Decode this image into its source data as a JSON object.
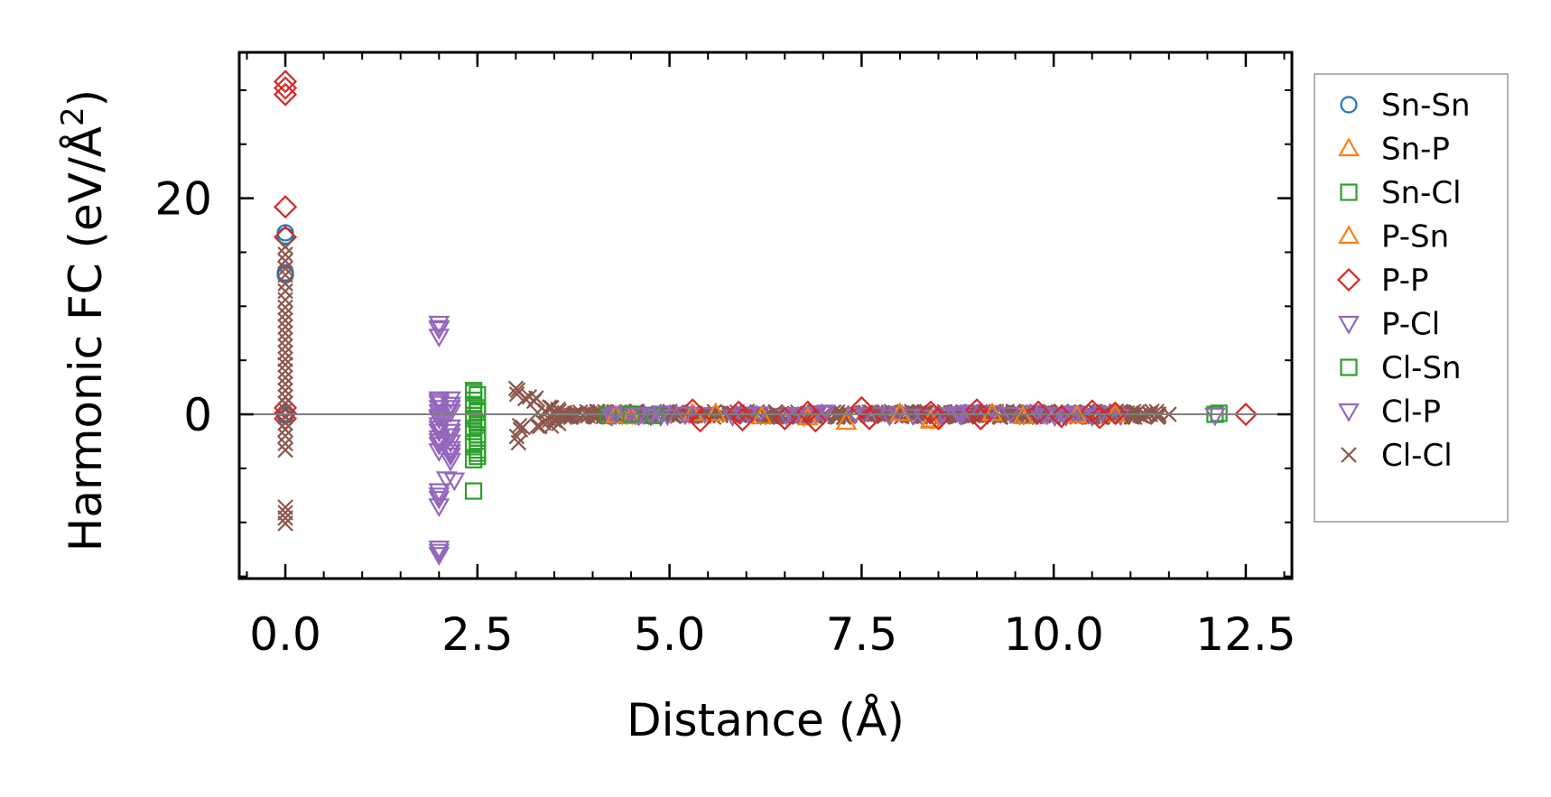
{
  "chart_data": {
    "type": "scatter",
    "xlabel": "Distance (Å)",
    "ylabel_prefix": "Harmonic FC (eV/Å",
    "ylabel_sup": "2",
    "ylabel_suffix": ")",
    "xlim": [
      -0.6,
      13.1
    ],
    "ylim": [
      -15.2,
      33.5
    ],
    "xticks": [
      0.0,
      2.5,
      5.0,
      7.5,
      10.0,
      12.5
    ],
    "xtick_labels": [
      "0.0",
      "2.5",
      "5.0",
      "7.5",
      "10.0",
      "12.5"
    ],
    "xminor_step": 0.5,
    "yticks": [
      0,
      20
    ],
    "ytick_labels": [
      "0",
      "20"
    ],
    "yminor_step": 5,
    "zero_line": true,
    "legend_position": "outside-right",
    "series": [
      {
        "name": "Sn-Sn",
        "marker": "circle",
        "color": "#1f77b4",
        "points": [
          [
            0,
            12.9
          ],
          [
            0,
            13.1
          ],
          [
            0,
            16.8
          ],
          [
            0,
            16.5
          ],
          [
            0,
            0.1
          ],
          [
            0,
            -0.1
          ]
        ]
      },
      {
        "name": "Sn-P",
        "marker": "triangle-up",
        "color": "#ff7f0e",
        "points": [
          [
            4.5,
            -0.2
          ],
          [
            5.3,
            0.1
          ],
          [
            6.2,
            -0.2
          ],
          [
            7.3,
            -0.7
          ],
          [
            8.4,
            -0.5
          ],
          [
            9.2,
            0.1
          ],
          [
            10.3,
            -0.1
          ]
        ]
      },
      {
        "name": "Sn-Cl",
        "marker": "square",
        "color": "#2ca02c",
        "points": [
          [
            2.45,
            2.2
          ],
          [
            2.5,
            1.8
          ],
          [
            2.45,
            0.9
          ],
          [
            2.5,
            0.2
          ],
          [
            2.45,
            -0.4
          ],
          [
            2.5,
            -1.0
          ],
          [
            2.45,
            -1.6
          ],
          [
            2.5,
            -2.2
          ],
          [
            2.45,
            -3.0
          ],
          [
            2.5,
            -3.6
          ],
          [
            2.45,
            -4.2
          ],
          [
            2.45,
            -7.1
          ],
          [
            4.2,
            -0.1
          ],
          [
            4.8,
            -0.1
          ],
          [
            12.1,
            0.0
          ]
        ]
      },
      {
        "name": "P-Sn",
        "marker": "triangle-up",
        "color": "#ff7f0e",
        "points": [
          [
            4.3,
            -0.1
          ],
          [
            5.6,
            0.1
          ],
          [
            6.8,
            -0.3
          ],
          [
            8.0,
            0.1
          ],
          [
            8.4,
            -0.6
          ],
          [
            9.6,
            -0.2
          ],
          [
            10.8,
            0.0
          ]
        ]
      },
      {
        "name": "P-P",
        "marker": "diamond",
        "color": "#d62728",
        "points": [
          [
            0,
            30.8
          ],
          [
            0,
            30.2
          ],
          [
            0,
            29.6
          ],
          [
            0,
            19.2
          ],
          [
            0,
            16.4
          ],
          [
            0,
            0.6
          ],
          [
            0,
            0.1
          ],
          [
            0,
            -0.4
          ],
          [
            5.3,
            0.4
          ],
          [
            5.4,
            -0.6
          ],
          [
            5.9,
            0.2
          ],
          [
            5.95,
            -0.5
          ],
          [
            6.5,
            -0.4
          ],
          [
            6.8,
            0.2
          ],
          [
            6.9,
            -0.6
          ],
          [
            7.5,
            0.6
          ],
          [
            7.6,
            -0.4
          ],
          [
            8.4,
            0.2
          ],
          [
            8.5,
            -0.4
          ],
          [
            9.0,
            0.4
          ],
          [
            9.05,
            -0.4
          ],
          [
            9.8,
            0.2
          ],
          [
            10.1,
            -0.2
          ],
          [
            10.5,
            0.3
          ],
          [
            10.6,
            -0.3
          ],
          [
            10.8,
            0.1
          ],
          [
            12.5,
            0.0
          ]
        ]
      },
      {
        "name": "P-Cl",
        "marker": "triangle-down",
        "color": "#9467bd",
        "points": [
          [
            2.0,
            8.4
          ],
          [
            2.0,
            7.9
          ],
          [
            2.0,
            7.2
          ],
          [
            2.0,
            1.4
          ],
          [
            2.0,
            1.0
          ],
          [
            2.0,
            0.6
          ],
          [
            2.0,
            0.2
          ],
          [
            2.0,
            -0.4
          ],
          [
            2.0,
            -1.0
          ],
          [
            2.0,
            -1.6
          ],
          [
            2.0,
            -2.2
          ],
          [
            2.0,
            -2.8
          ],
          [
            2.0,
            -3.4
          ],
          [
            2.0,
            -7.1
          ],
          [
            2.0,
            -7.8
          ],
          [
            2.0,
            -8.5
          ],
          [
            2.0,
            -12.4
          ],
          [
            2.0,
            -13.0
          ],
          [
            2.15,
            1.4
          ],
          [
            2.15,
            0.9
          ],
          [
            2.15,
            0.2
          ],
          [
            2.15,
            -1.2
          ],
          [
            2.15,
            -2.0
          ],
          [
            2.15,
            -2.6
          ],
          [
            2.15,
            -3.2
          ],
          [
            2.15,
            -3.8
          ],
          [
            2.15,
            -4.3
          ],
          [
            2.1,
            -6.0
          ],
          [
            4.3,
            0.0
          ],
          [
            4.9,
            0.1
          ]
        ]
      },
      {
        "name": "Cl-Sn",
        "marker": "square",
        "color": "#2ca02c",
        "points": [
          [
            2.45,
            2.0
          ],
          [
            2.45,
            1.3
          ],
          [
            2.5,
            0.6
          ],
          [
            2.45,
            -0.1
          ],
          [
            2.5,
            -0.7
          ],
          [
            2.45,
            -1.3
          ],
          [
            2.5,
            -1.9
          ],
          [
            2.45,
            -2.6
          ],
          [
            2.5,
            -3.3
          ],
          [
            2.5,
            -3.9
          ],
          [
            4.5,
            0.0
          ],
          [
            12.15,
            0.1
          ]
        ]
      },
      {
        "name": "Cl-P",
        "marker": "triangle-down",
        "color": "#9467bd",
        "points": [
          [
            2.0,
            8.0
          ],
          [
            2.0,
            1.2
          ],
          [
            2.0,
            -0.2
          ],
          [
            2.0,
            -1.3
          ],
          [
            2.0,
            -2.5
          ],
          [
            2.0,
            -7.5
          ],
          [
            2.0,
            -12.7
          ],
          [
            2.15,
            0.6
          ],
          [
            2.15,
            -1.6
          ],
          [
            2.15,
            -3.5
          ],
          [
            2.2,
            -6.1
          ],
          [
            4.6,
            -0.1
          ],
          [
            5.2,
            0.0
          ],
          [
            12.1,
            -0.1
          ]
        ]
      },
      {
        "name": "Cl-Cl",
        "marker": "x",
        "color": "#8c564b",
        "points": [
          [
            0,
            15.5
          ],
          [
            0,
            14.8
          ],
          [
            0,
            14.2
          ],
          [
            0,
            13.5
          ],
          [
            0,
            12.9
          ],
          [
            0,
            12.1
          ],
          [
            0,
            11.4
          ],
          [
            0,
            10.6
          ],
          [
            0,
            9.9
          ],
          [
            0,
            9.3
          ],
          [
            0,
            8.7
          ],
          [
            0,
            8.1
          ],
          [
            0,
            7.5
          ],
          [
            0,
            6.9
          ],
          [
            0,
            6.3
          ],
          [
            0,
            5.7
          ],
          [
            0,
            5.1
          ],
          [
            0,
            4.6
          ],
          [
            0,
            4.0
          ],
          [
            0,
            3.4
          ],
          [
            0,
            2.8
          ],
          [
            0,
            2.2
          ],
          [
            0,
            1.6
          ],
          [
            0,
            1.0
          ],
          [
            0,
            0.4
          ],
          [
            0,
            -0.2
          ],
          [
            0,
            -0.8
          ],
          [
            0,
            -1.4
          ],
          [
            0,
            -2.0
          ],
          [
            0,
            -2.7
          ],
          [
            0,
            -3.3
          ],
          [
            0,
            -8.6
          ],
          [
            0,
            -9.1
          ],
          [
            0,
            -9.6
          ],
          [
            0,
            -10.1
          ],
          [
            11.5,
            0.0
          ]
        ]
      }
    ],
    "cloud": {
      "series": "Cl-Cl",
      "x_start": 3.0,
      "x_end": 11.4
    }
  },
  "legend": {
    "entries": [
      "Sn-Sn",
      "Sn-P",
      "Sn-Cl",
      "P-Sn",
      "P-P",
      "P-Cl",
      "Cl-Sn",
      "Cl-P",
      "Cl-Cl"
    ]
  }
}
